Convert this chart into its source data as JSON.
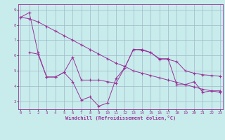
{
  "xlabel": "Windchill (Refroidissement éolien,°C)",
  "bg_color": "#c8ecec",
  "line_color": "#993399",
  "grid_color": "#9fb8c8",
  "xlim": [
    -0.3,
    23.3
  ],
  "ylim": [
    2.5,
    9.35
  ],
  "yticks": [
    3,
    4,
    5,
    6,
    7,
    8,
    9
  ],
  "xticks": [
    0,
    1,
    2,
    3,
    4,
    5,
    6,
    7,
    8,
    9,
    10,
    11,
    12,
    13,
    14,
    15,
    16,
    17,
    18,
    19,
    20,
    21,
    22,
    23
  ],
  "line1_x": [
    0,
    1,
    2,
    3,
    4,
    5,
    6,
    7,
    8,
    9,
    10,
    11,
    12,
    13,
    14,
    15,
    16,
    17,
    18,
    19,
    20,
    21,
    22,
    23
  ],
  "line1_y": [
    8.5,
    8.8,
    6.2,
    4.6,
    4.6,
    4.9,
    4.3,
    3.1,
    3.3,
    2.7,
    2.9,
    4.5,
    5.2,
    6.4,
    6.4,
    6.2,
    5.8,
    5.8,
    4.1,
    4.1,
    4.3,
    3.6,
    3.7,
    3.7
  ],
  "line2_x": [
    0,
    1,
    2,
    3,
    4,
    5,
    6,
    7,
    8,
    9,
    10,
    11,
    12,
    13,
    14,
    15,
    16,
    17,
    18,
    19,
    20,
    21,
    22,
    23
  ],
  "line2_y": [
    8.5,
    8.4,
    8.2,
    7.9,
    7.6,
    7.3,
    7.0,
    6.7,
    6.4,
    6.1,
    5.8,
    5.5,
    5.3,
    5.0,
    4.85,
    4.7,
    4.55,
    4.4,
    4.25,
    4.1,
    3.95,
    3.8,
    3.7,
    3.6
  ],
  "line3_x": [
    1,
    2,
    3,
    4,
    5,
    6,
    7,
    8,
    9,
    10,
    11,
    12,
    13,
    14,
    15,
    16,
    17,
    18,
    19,
    20,
    21,
    22,
    23
  ],
  "line3_y": [
    6.2,
    6.1,
    4.6,
    4.6,
    4.9,
    5.9,
    4.4,
    4.4,
    4.4,
    4.3,
    4.2,
    5.2,
    6.4,
    6.35,
    6.2,
    5.75,
    5.75,
    5.6,
    5.0,
    4.85,
    4.75,
    4.7,
    4.65
  ]
}
